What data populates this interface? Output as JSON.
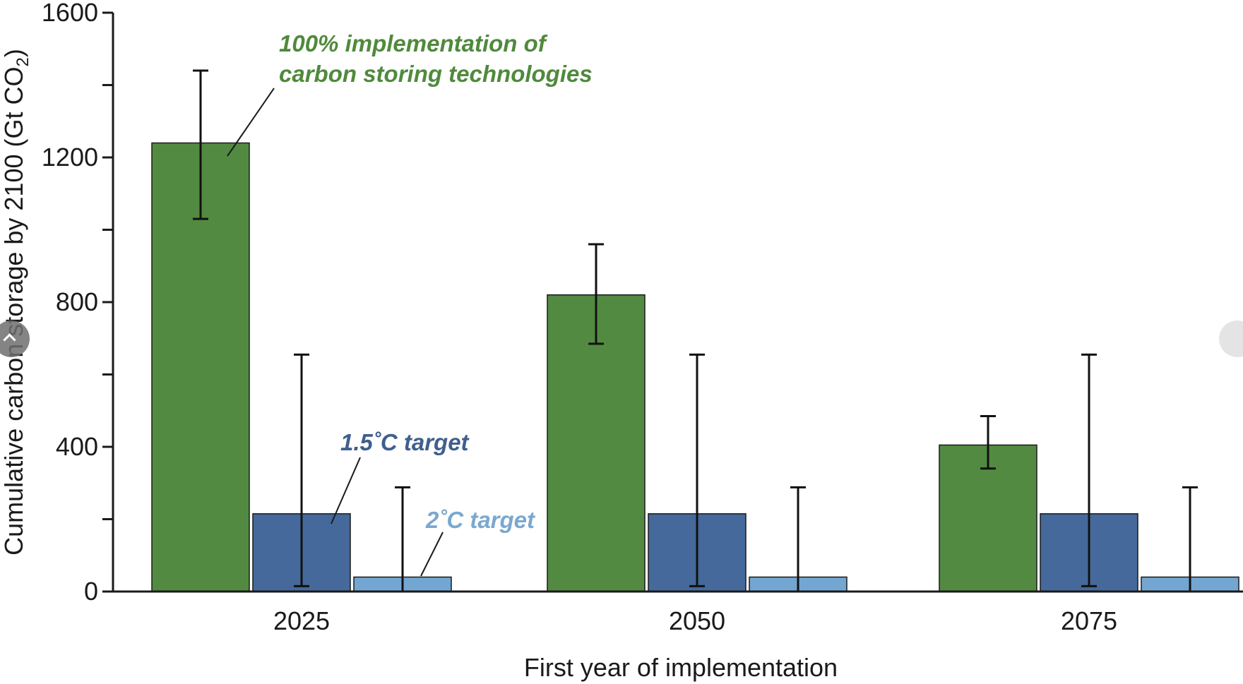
{
  "chart_data": {
    "type": "bar",
    "ylabel": "Cumulative carbon storage by 2100 (Gt CO2)",
    "ylabel_main": "Cumulative carbon storage by 2100 (Gt CO",
    "ylabel_sub": "2",
    "ylabel_close": ")",
    "xlabel": "First year of implementation",
    "ylim": [
      0,
      1600
    ],
    "yticks": [
      "0",
      "400",
      "800",
      "1200",
      "1600"
    ],
    "categories": [
      "2025",
      "2050",
      "2075"
    ],
    "series": [
      {
        "values": [
          1240,
          820,
          405
        ],
        "err_low": [
          1030,
          685,
          340
        ],
        "err_high": [
          1440,
          960,
          485
        ]
      },
      {
        "values": [
          215,
          215,
          215
        ],
        "err_low": [
          15,
          15,
          15
        ],
        "err_high": [
          655,
          655,
          655
        ]
      },
      {
        "values": [
          40,
          40,
          40
        ],
        "err_low": [
          0,
          0,
          0
        ],
        "err_high": [
          288,
          288,
          288
        ]
      }
    ],
    "annotations": {
      "full_line1": "100% implementation of",
      "full_line2": "carbon storing technologies",
      "target15": "1.5˚C target",
      "target2": "2˚C target"
    },
    "grid": false,
    "legend": "none"
  },
  "colors": {
    "full": "#528a42",
    "target15": "#45699a",
    "target2": "#74a6d2",
    "annot_full": "#4f8a3c",
    "annot_15": "#3f5f8e",
    "annot_2": "#7aa8d0",
    "axis": "#1a1a1a"
  },
  "nav": {
    "prev_icon": "chevron-left-icon",
    "next_icon": "chevron-right-icon"
  }
}
